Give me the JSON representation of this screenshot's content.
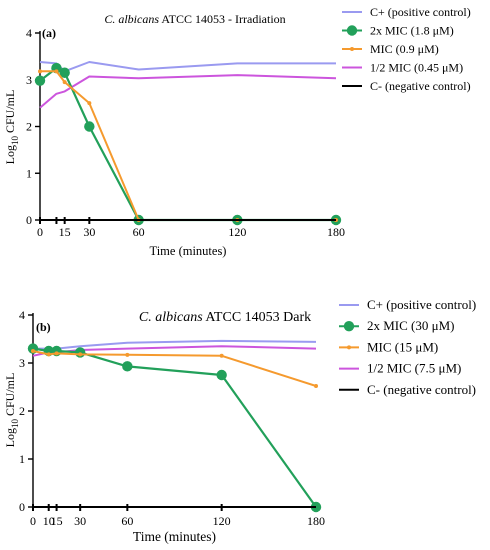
{
  "colors": {
    "positive": "#9a9af0",
    "mic2x": "#22a05a",
    "mic": "#f59a2e",
    "mic_half": "#cc55dd",
    "negative": "#000000"
  },
  "chart_data": [
    {
      "type": "line",
      "panel_label": "(a)",
      "title_italic": "C. albicans",
      "title_rest": " ATCC 14053 - Irradiation",
      "xlabel": "Time (minutes)",
      "ylabel_main": "Log",
      "ylabel_sub": "10",
      "ylabel_rest": " CFU/mL",
      "xlim": [
        0,
        180
      ],
      "ylim": [
        0,
        4
      ],
      "x_ticks": [
        0,
        10,
        15,
        30,
        60,
        120,
        180
      ],
      "x_tick_labels": [
        "0",
        "",
        "15",
        "30",
        "60",
        "120",
        "180"
      ],
      "y_ticks": [
        0,
        1,
        2,
        3,
        4
      ],
      "y_tick_labels": [
        "0",
        "1",
        "2",
        "3",
        "4"
      ],
      "legend_position": "right",
      "series": [
        {
          "name": "C+ (positive control)",
          "x": [
            0,
            10,
            15,
            30,
            60,
            120,
            180
          ],
          "y": [
            3.38,
            3.35,
            3.18,
            3.38,
            3.22,
            3.35,
            3.35
          ]
        },
        {
          "name": "2x MIC (1.8 μM)",
          "x": [
            0,
            10,
            15,
            30,
            60,
            120,
            180
          ],
          "y": [
            2.98,
            3.25,
            3.15,
            2.0,
            0,
            0,
            0
          ]
        },
        {
          "name": "MIC (0.9 μM)",
          "x": [
            0,
            10,
            15,
            30,
            60,
            120,
            180
          ],
          "y": [
            3.18,
            3.18,
            2.95,
            2.5,
            0,
            0,
            0
          ]
        },
        {
          "name": "1/2 MIC (0.45 μM)",
          "x": [
            0,
            10,
            15,
            30,
            60,
            120,
            180
          ],
          "y": [
            2.4,
            2.7,
            2.75,
            3.07,
            3.03,
            3.1,
            3.03
          ]
        },
        {
          "name": "C- (negative control)",
          "x": [
            0,
            10,
            15,
            30,
            60,
            120,
            180
          ],
          "y": [
            0,
            0,
            0,
            0,
            0,
            0,
            0
          ]
        }
      ]
    },
    {
      "type": "line",
      "panel_label": "(b)",
      "title_italic": "C. albicans",
      "title_rest": " ATCC 14053 Dark",
      "xlabel": "Time (minutes)",
      "ylabel_main": "Log",
      "ylabel_sub": "10",
      "ylabel_rest": " CFU/mL",
      "xlim": [
        0,
        180
      ],
      "ylim": [
        0,
        4
      ],
      "x_ticks": [
        0,
        10,
        15,
        30,
        60,
        120,
        180
      ],
      "x_tick_labels": [
        "0",
        "10",
        "15",
        "30",
        "60",
        "120",
        "180"
      ],
      "y_ticks": [
        0,
        1,
        2,
        3,
        4
      ],
      "y_tick_labels": [
        "0",
        "1",
        "2",
        "3",
        "4"
      ],
      "legend_position": "right",
      "series": [
        {
          "name": "C+ (positive control)",
          "x": [
            0,
            10,
            15,
            30,
            60,
            120,
            180
          ],
          "y": [
            3.3,
            3.3,
            3.3,
            3.35,
            3.42,
            3.46,
            3.44
          ]
        },
        {
          "name": "2x MIC (30 μM)",
          "x": [
            0,
            10,
            15,
            30,
            60,
            120,
            180
          ],
          "y": [
            3.3,
            3.25,
            3.25,
            3.22,
            2.93,
            2.75,
            0
          ]
        },
        {
          "name": "MIC (15 μM)",
          "x": [
            0,
            10,
            15,
            30,
            60,
            120,
            180
          ],
          "y": [
            3.25,
            3.18,
            3.2,
            3.18,
            3.17,
            3.15,
            2.52
          ]
        },
        {
          "name": "1/2 MIC (7.5 μM)",
          "x": [
            0,
            10,
            15,
            30,
            60,
            120,
            180
          ],
          "y": [
            3.15,
            3.22,
            3.22,
            3.27,
            3.3,
            3.35,
            3.3
          ]
        },
        {
          "name": "C- (negative control)",
          "x": [
            0,
            10,
            15,
            30,
            60,
            120,
            180
          ],
          "y": [
            0,
            0,
            0,
            0,
            0,
            0,
            0
          ]
        }
      ]
    }
  ]
}
